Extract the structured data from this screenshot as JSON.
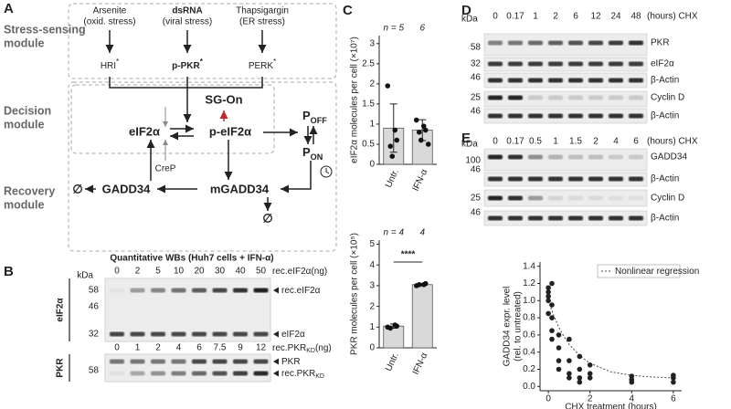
{
  "panels": [
    "A",
    "B",
    "C",
    "D",
    "E"
  ],
  "diagram": {
    "modules": [
      [
        "Stress-sensing",
        "module"
      ],
      [
        "Decision",
        "module"
      ],
      [
        "Recovery",
        "module"
      ]
    ],
    "stressors": [
      {
        "name": "Arsenite",
        "note": "(oxid. stress)"
      },
      {
        "name": "dsRNA",
        "note": "(viral stress)"
      },
      {
        "name": "Thapsigargin",
        "note": "(ER stress)"
      }
    ],
    "kinases": [
      {
        "name": "HRI",
        "mark": "*"
      },
      {
        "name": "p-PKR",
        "mark": "*"
      },
      {
        "name": "PERK",
        "mark": "*"
      }
    ],
    "eif2a": "eIF2α",
    "p_eif2a": "p-eIF2α",
    "sg_on": "SG-On",
    "p_off": {
      "base": "P",
      "sub": "OFF"
    },
    "p_on": {
      "base": "P",
      "sub": "ON"
    },
    "crep": "CreP",
    "gadd34": "GADD34",
    "mgadd34": "mGADD34",
    "degraded": [
      "∅",
      "∅"
    ]
  },
  "blots": {
    "B": {
      "title": "Quantitative WBs (Huh7 cells + IFN-α)",
      "kda": "kDa",
      "groups": [
        {
          "name": "eIF2α",
          "lanes": [
            0,
            2,
            5,
            10,
            20,
            30,
            40,
            50
          ],
          "lane_unit": {
            "base": "rec.eIF2α",
            "tail": "(ng)"
          },
          "markers": [
            58,
            46,
            32
          ],
          "bands": [
            {
              "base": "rec.eIF2α"
            },
            {
              "base": "eIF2α"
            }
          ]
        },
        {
          "name": "PKR",
          "lanes": [
            0,
            1,
            2,
            4,
            6,
            7.5,
            9,
            12
          ],
          "lane_unit": {
            "base": "rec.PKR",
            "sub": "KD",
            "tail": "(ng)"
          },
          "markers": [
            58
          ],
          "bands": [
            {
              "base": "PKR"
            },
            {
              "base": "rec.PKR",
              "sub": "KD"
            }
          ]
        }
      ]
    },
    "D": {
      "kda": "kDa",
      "lanes": [
        0,
        0.17,
        1,
        2,
        6,
        12,
        24,
        48
      ],
      "lane_unit": "(hours) CHX",
      "rows": [
        {
          "label": "PKR",
          "marker": 58
        },
        {
          "label": "eIF2α",
          "marker": 32
        },
        {
          "label": "β-Actin",
          "marker": 46
        },
        {
          "label": "Cyclin D",
          "marker": 25
        },
        {
          "label": "β-Actin",
          "marker": 46
        }
      ]
    },
    "E": {
      "kda": "kDa",
      "lanes": [
        0,
        0.17,
        0.5,
        1,
        1.5,
        2,
        4,
        6
      ],
      "lane_unit": "(hours) CHX",
      "rows": [
        {
          "label": "GADD34",
          "marker": 100
        },
        {
          "label": "β-Actin",
          "marker": 46
        },
        {
          "label": "Cyclin D",
          "marker": 25
        },
        {
          "label": "β-Actin",
          "marker": 46
        }
      ]
    }
  },
  "chart_data": [
    {
      "type": "bar",
      "ylabel": "eIF2α molecules per cell (×10⁷)",
      "categories": [
        "Untr.",
        "IFN-α"
      ],
      "values": [
        0.9,
        0.85
      ],
      "errors": [
        0.6,
        0.26
      ],
      "points": [
        [
          1.95,
          0.85,
          0.6,
          0.45,
          0.2
        ],
        [
          1.1,
          0.95,
          0.85,
          0.8,
          0.6,
          0.5
        ]
      ],
      "n_labels": [
        "n = 5",
        "6"
      ],
      "ylim": [
        0,
        3.2
      ],
      "yticks": [
        0,
        0.5,
        1,
        1.5,
        2,
        2.5,
        3
      ],
      "color": "#d9d9d9"
    },
    {
      "type": "bar",
      "ylabel": "PKR molecules per cell (×10⁵)",
      "categories": [
        "Untr.",
        "IFN-α"
      ],
      "values": [
        1.05,
        3.05
      ],
      "errors": [
        0.1,
        0.05
      ],
      "points": [
        [
          1.0,
          1.1,
          1.05,
          0.95
        ],
        [
          3.0,
          3.05,
          3.1,
          3.05
        ]
      ],
      "n_labels": [
        "n = 4",
        "4"
      ],
      "annotation": "****",
      "ylim": [
        0,
        5.2
      ],
      "yticks": [
        0,
        1,
        2,
        3,
        4,
        5
      ],
      "color": "#d9d9d9"
    },
    {
      "type": "scatter",
      "xlabel": "CHX treatment (hours)",
      "ylabel": [
        "GADD34 expr. level",
        "(rel. to untreated)"
      ],
      "x": [
        0,
        0,
        0,
        0,
        0,
        0.17,
        0.17,
        0.17,
        0.17,
        0.17,
        0.5,
        0.5,
        0.5,
        0.5,
        1,
        1,
        1,
        1,
        1.5,
        1.5,
        1.5,
        1.5,
        2,
        2,
        2,
        4,
        4,
        4,
        6,
        6,
        6
      ],
      "values": [
        1.15,
        1.1,
        1.05,
        1.0,
        0.85,
        1.2,
        0.95,
        0.8,
        0.65,
        0.55,
        0.6,
        0.45,
        0.3,
        0.2,
        0.55,
        0.3,
        0.15,
        0.1,
        0.35,
        0.2,
        0.1,
        0.05,
        0.25,
        0.15,
        0.1,
        0.12,
        0.08,
        0.05,
        0.13,
        0.1,
        0.05
      ],
      "color": "#222",
      "series": [
        {
          "name": "Nonlinear regression",
          "color": "#444",
          "x": [
            0,
            0.25,
            0.5,
            0.75,
            1,
            1.5,
            2,
            3,
            4,
            5,
            6
          ],
          "values": [
            1.0,
            0.83,
            0.69,
            0.58,
            0.49,
            0.36,
            0.27,
            0.17,
            0.13,
            0.11,
            0.1
          ]
        }
      ],
      "legend": "upper right",
      "xlim": [
        -0.4,
        6.4
      ],
      "xticks": [
        0,
        2,
        4,
        6
      ],
      "ylim": [
        -0.05,
        1.45
      ],
      "yticks": [
        {
          "value": 0,
          "label": "0.0"
        },
        0.2,
        0.4,
        0.6,
        0.8,
        {
          "value": 1,
          "label": "1.0"
        },
        1.2,
        1.4
      ]
    }
  ]
}
